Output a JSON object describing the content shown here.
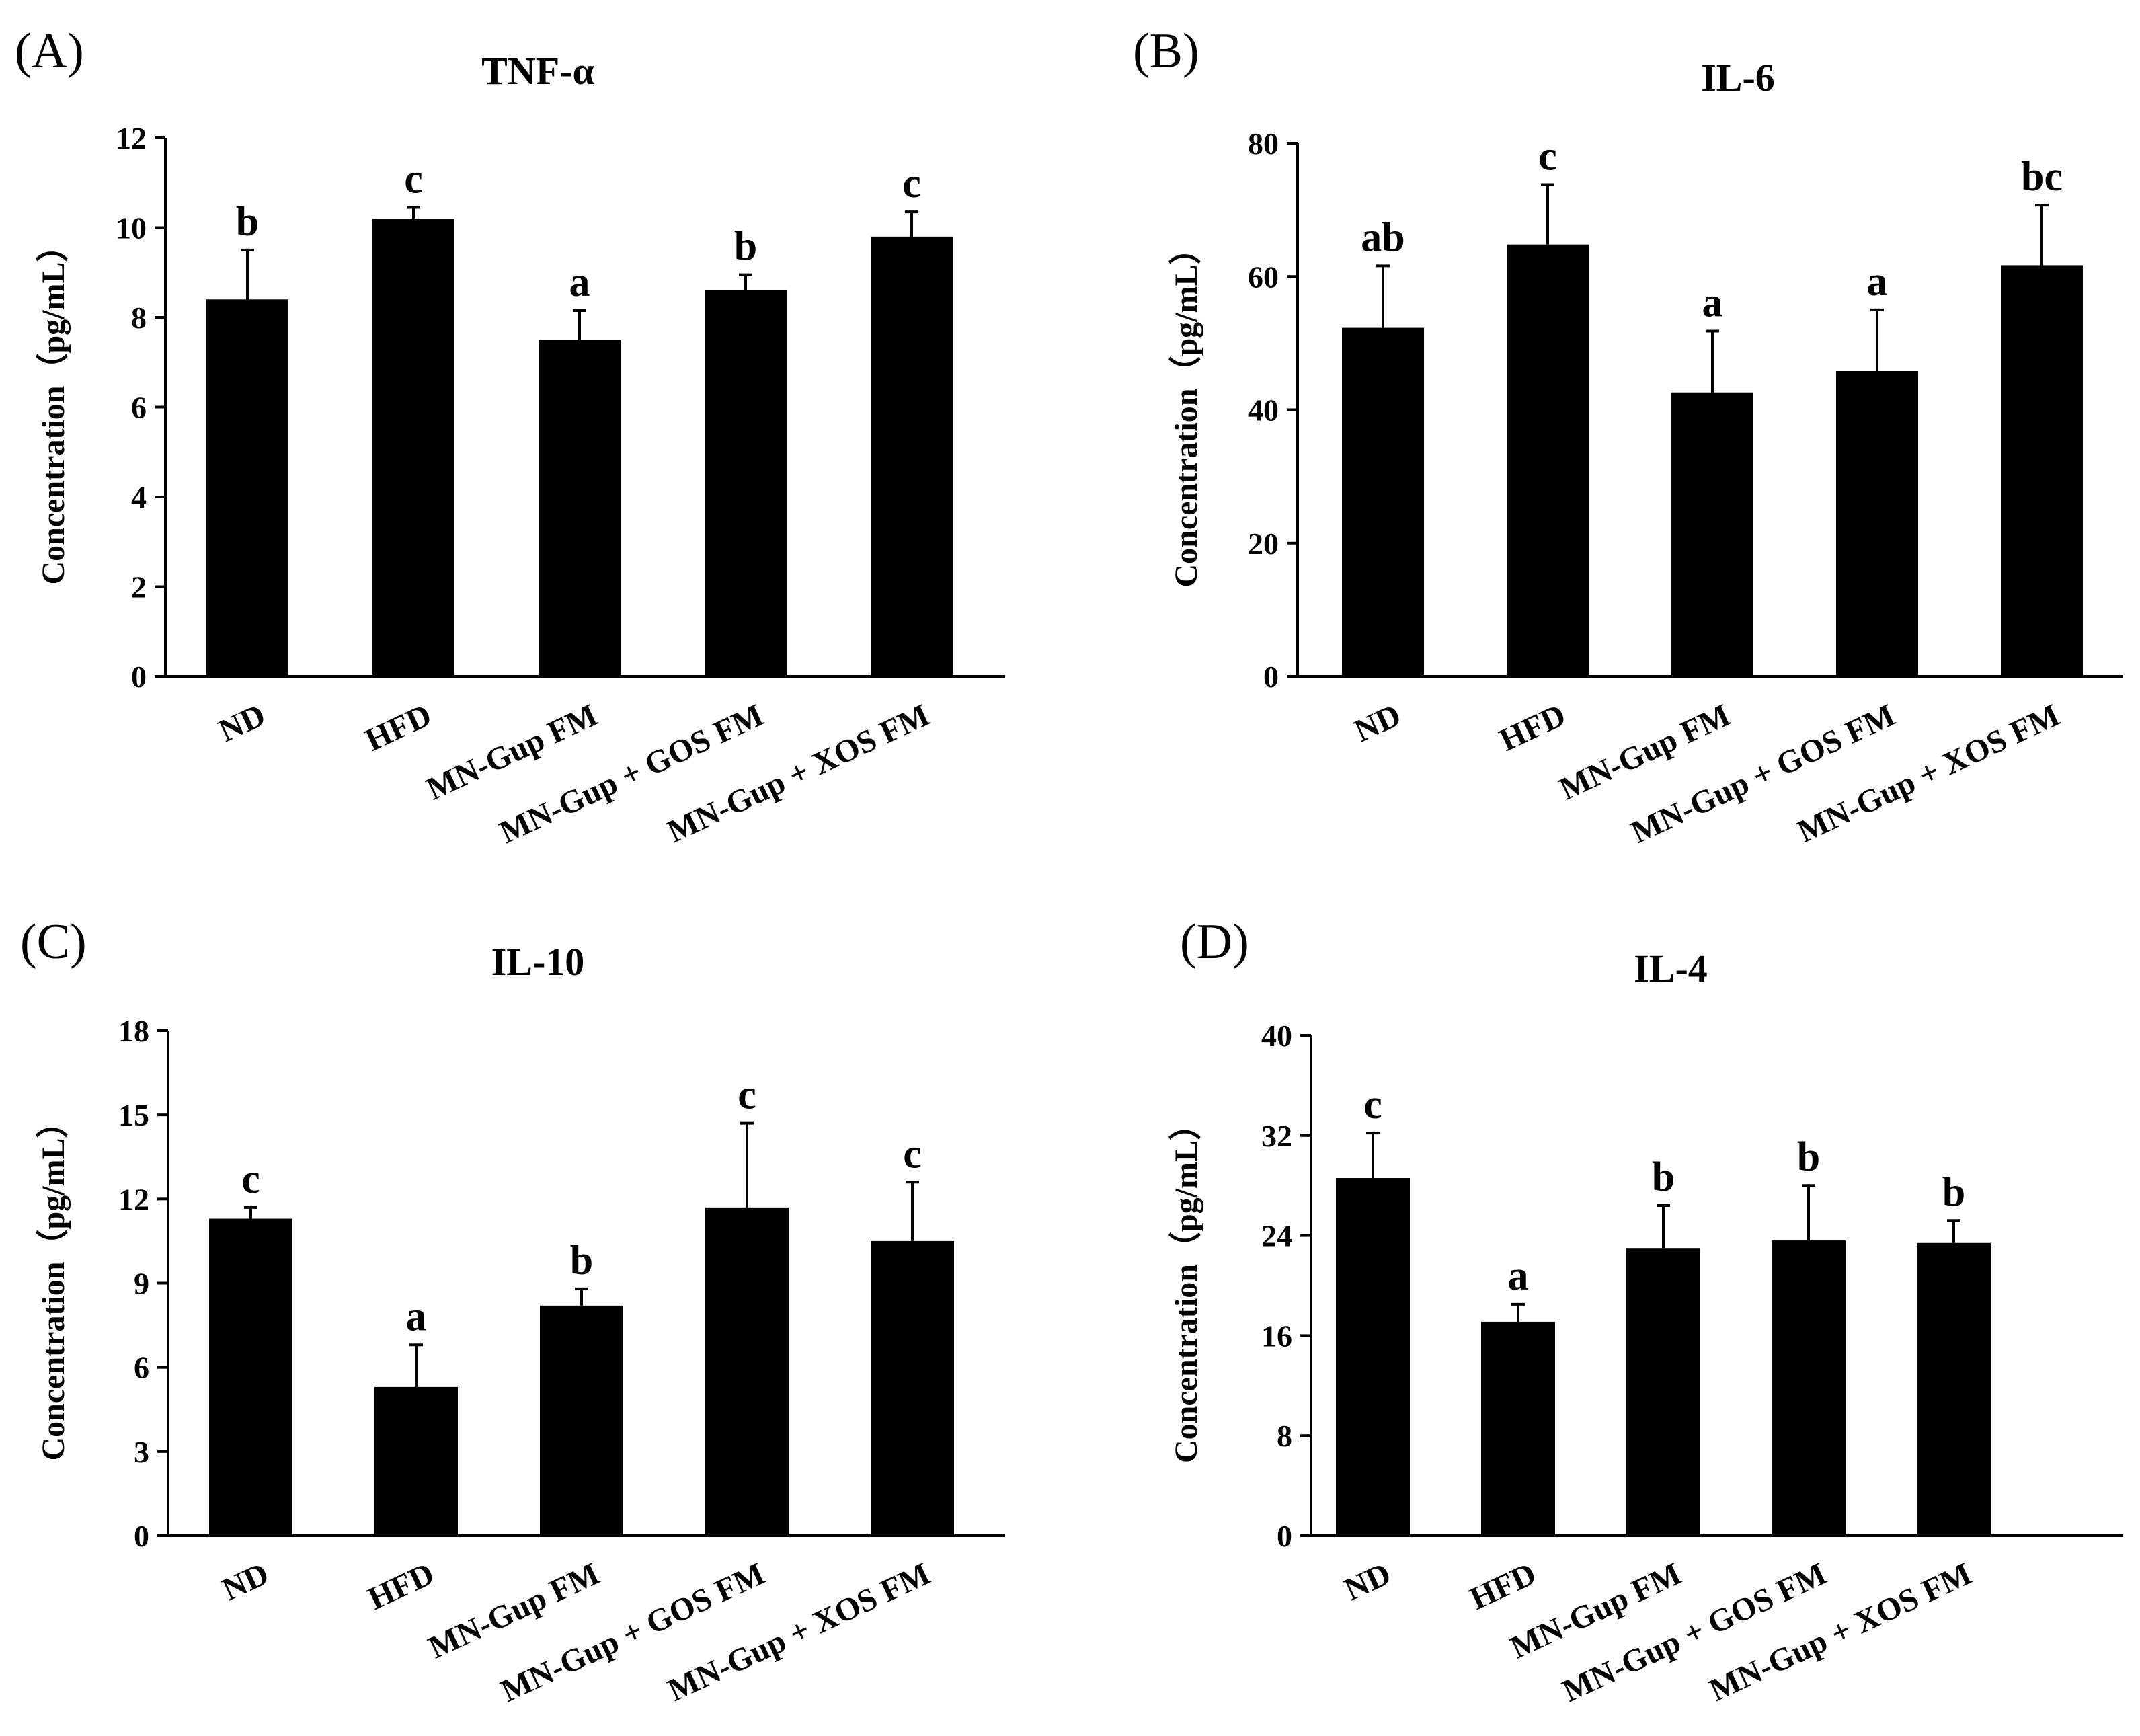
{
  "figure": {
    "colors": {
      "bar": "#000000",
      "axis": "#000000",
      "background": "#ffffff"
    }
  },
  "chart_data": [
    {
      "panel": "(A)",
      "type": "bar",
      "title": "TNF-α",
      "ylabel": "Concentration（pg/mL）",
      "xlabel": "",
      "ylim": [
        0,
        12
      ],
      "yticks": [
        0,
        2,
        4,
        6,
        8,
        10,
        12
      ],
      "categories": [
        "ND",
        "HFD",
        "MN-Gup FM",
        "MN-Gup + GOS FM",
        "MN-Gup + XOS FM"
      ],
      "values": [
        8.4,
        10.2,
        7.5,
        8.6,
        9.8
      ],
      "errors": [
        1.1,
        0.25,
        0.65,
        0.35,
        0.55
      ],
      "significance": [
        "b",
        "c",
        "a",
        "b",
        "c"
      ]
    },
    {
      "panel": "(B)",
      "type": "bar",
      "title": "IL-6",
      "ylabel": "Concentration（pg/mL）",
      "xlabel": "",
      "ylim": [
        0,
        80
      ],
      "yticks": [
        0,
        20,
        40,
        60,
        80
      ],
      "categories": [
        "ND",
        "HFD",
        "MN-Gup FM",
        "MN-Gup + GOS FM",
        "MN-Gup + XOS FM"
      ],
      "values": [
        52.3,
        64.8,
        42.6,
        45.8,
        61.7
      ],
      "errors": [
        9.3,
        9.0,
        9.2,
        9.2,
        9.0
      ],
      "significance": [
        "ab",
        "c",
        "a",
        "a",
        "bc"
      ]
    },
    {
      "panel": "(C)",
      "type": "bar",
      "title": "IL-10",
      "ylabel": "Concentration（pg/mL）",
      "xlabel": "",
      "ylim": [
        0,
        18
      ],
      "yticks": [
        0,
        3,
        6,
        9,
        12,
        15,
        18
      ],
      "categories": [
        "ND",
        "HFD",
        "MN-Gup FM",
        "MN-Gup + GOS FM",
        "MN-Gup + XOS FM"
      ],
      "values": [
        11.3,
        5.3,
        8.2,
        11.7,
        10.5
      ],
      "errors": [
        0.4,
        1.5,
        0.6,
        3.0,
        2.1
      ],
      "significance": [
        "c",
        "a",
        "b",
        "c",
        "c"
      ]
    },
    {
      "panel": "(D)",
      "type": "bar",
      "title": "IL-4",
      "ylabel": "Concentration（pg/mL）",
      "xlabel": "",
      "ylim": [
        0,
        40
      ],
      "yticks": [
        0,
        8,
        16,
        24,
        32,
        40
      ],
      "categories": [
        "ND",
        "HFD",
        "MN-Gup FM",
        "MN-Gup + GOS FM",
        "MN-Gup + XOS FM"
      ],
      "values": [
        28.6,
        17.1,
        23.0,
        23.6,
        23.4
      ],
      "errors": [
        3.6,
        1.4,
        3.4,
        4.4,
        1.8
      ],
      "significance": [
        "c",
        "a",
        "b",
        "b",
        "b"
      ]
    }
  ]
}
